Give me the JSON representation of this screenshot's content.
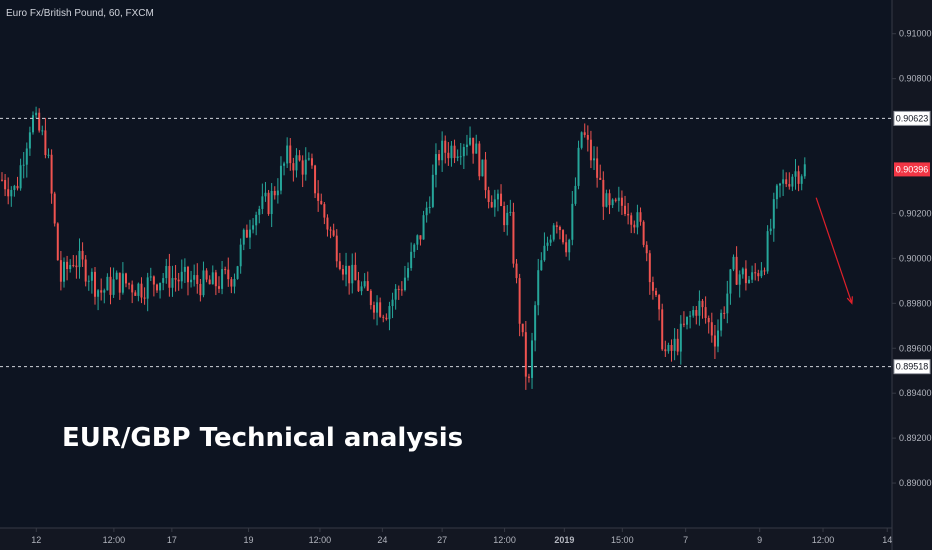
{
  "symbol_title": "Euro Fx/British Pound, 60, FXCM",
  "overlay_title": "EUR/GBP Technical analysis",
  "colors": {
    "background": "#0d1421",
    "axis_background": "#131722",
    "up": "#26a69a",
    "down": "#ef5350",
    "level_line": "#d1d4dc",
    "current_price": "#f23645",
    "arrow": "#e0202a"
  },
  "chart_data": {
    "type": "candlestick",
    "instrument": "Euro Fx/British Pound",
    "timeframe": "60",
    "source": "FXCM",
    "y_ticks": [
      "0.91000",
      "0.90800",
      "0.90623",
      "0.90396",
      "0.90200",
      "0.90000",
      "0.89800",
      "0.89600",
      "0.89518",
      "0.89400",
      "0.89200",
      "0.89000"
    ],
    "y_tick_values": [
      0.91,
      0.908,
      0.90623,
      0.90396,
      0.902,
      0.9,
      0.898,
      0.896,
      0.89518,
      0.894,
      0.892,
      0.89
    ],
    "ylim": [
      0.888,
      0.9115
    ],
    "x_ticks": [
      "12",
      "12:00",
      "17",
      "19",
      "12:00",
      "24",
      "27",
      "12:00",
      "2019",
      "15:00",
      "7",
      "9",
      "12:00",
      "14"
    ],
    "x_tick_positions": [
      0.016,
      0.103,
      0.168,
      0.254,
      0.334,
      0.404,
      0.471,
      0.541,
      0.608,
      0.673,
      0.744,
      0.827,
      0.898,
      0.97
    ],
    "xlim": [
      0,
      1
    ],
    "horizontal_levels": [
      {
        "price": 0.90623,
        "label": "0.90623",
        "style": "dashed"
      },
      {
        "price": 0.89518,
        "label": "0.89518",
        "style": "dashed"
      }
    ],
    "current_price": {
      "price": 0.90396,
      "label": "0.90396"
    },
    "trend_anchors": [
      [
        0.0,
        0.9035
      ],
      [
        0.015,
        0.903
      ],
      [
        0.033,
        0.9063
      ],
      [
        0.05,
        0.905
      ],
      [
        0.065,
        0.899
      ],
      [
        0.08,
        0.9
      ],
      [
        0.095,
        0.8995
      ],
      [
        0.11,
        0.8985
      ],
      [
        0.13,
        0.899
      ],
      [
        0.155,
        0.8987
      ],
      [
        0.18,
        0.8992
      ],
      [
        0.21,
        0.899
      ],
      [
        0.235,
        0.8988
      ],
      [
        0.26,
        0.8993
      ],
      [
        0.28,
        0.902
      ],
      [
        0.3,
        0.9025
      ],
      [
        0.32,
        0.9045
      ],
      [
        0.345,
        0.904
      ],
      [
        0.36,
        0.902
      ],
      [
        0.385,
        0.8995
      ],
      [
        0.405,
        0.8985
      ],
      [
        0.43,
        0.8977
      ],
      [
        0.45,
        0.899
      ],
      [
        0.47,
        0.9012
      ],
      [
        0.49,
        0.9047
      ],
      [
        0.51,
        0.905
      ],
      [
        0.525,
        0.9055
      ],
      [
        0.545,
        0.903
      ],
      [
        0.57,
        0.9015
      ],
      [
        0.58,
        0.8975
      ],
      [
        0.59,
        0.894
      ],
      [
        0.6,
        0.899
      ],
      [
        0.62,
        0.902
      ],
      [
        0.635,
        0.9005
      ],
      [
        0.65,
        0.9057
      ],
      [
        0.665,
        0.904
      ],
      [
        0.68,
        0.902
      ],
      [
        0.7,
        0.9025
      ],
      [
        0.72,
        0.901
      ],
      [
        0.735,
        0.8975
      ],
      [
        0.745,
        0.8955
      ],
      [
        0.76,
        0.8965
      ],
      [
        0.78,
        0.898
      ],
      [
        0.8,
        0.8965
      ],
      [
        0.82,
        0.8995
      ],
      [
        0.84,
        0.899
      ],
      [
        0.855,
        0.9
      ],
      [
        0.87,
        0.903
      ],
      [
        0.885,
        0.9038
      ],
      [
        0.9,
        0.904
      ]
    ],
    "projection_arrow": {
      "from": [
        0.915,
        0.9027
      ],
      "to": [
        0.955,
        0.898
      ]
    }
  }
}
